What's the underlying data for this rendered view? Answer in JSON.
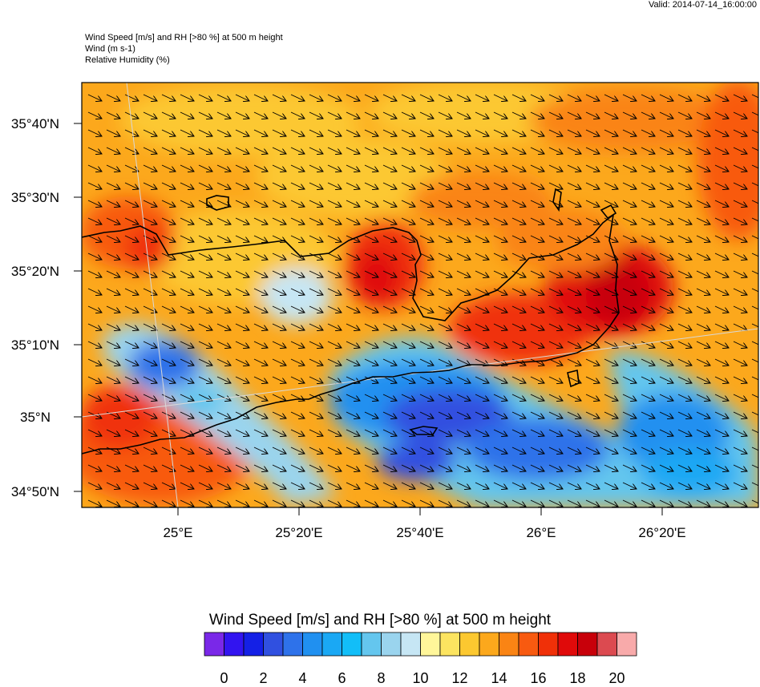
{
  "header": {
    "valid": "Valid: 2014-07-14_16:00:00",
    "line1": "Wind Speed [m/s] and RH [>80 %] at 500 m height",
    "line2": "Wind   (m s-1)",
    "line3": "Relative Humidity   (%)"
  },
  "map": {
    "lat_labels": [
      "35°40'N",
      "35°30'N",
      "35°20'N",
      "35°10'N",
      "35°N",
      "34°50'N"
    ],
    "lon_labels": [
      "25°E",
      "25°20'E",
      "25°40'E",
      "26°E",
      "26°20'E"
    ],
    "wind_direction": "north-west to south-east",
    "coastline_color": "#000000"
  },
  "colorbar": {
    "title": "Wind Speed [m/s] and RH [>80 %] at 500 m height",
    "tick_labels": [
      "0",
      "2",
      "4",
      "6",
      "8",
      "10",
      "12",
      "14",
      "16",
      "18",
      "20"
    ],
    "colors": [
      "#7a28e8",
      "#3214f0",
      "#1420e6",
      "#3050e0",
      "#2e72ea",
      "#2090f0",
      "#1aa8f4",
      "#12bef8",
      "#64c6ee",
      "#9ad4ee",
      "#c6e6f4",
      "#fff69a",
      "#fce460",
      "#fcc830",
      "#fca81c",
      "#fa8414",
      "#f85a10",
      "#f03008",
      "#e00a0a",
      "#c8000a",
      "#dc4a50",
      "#f8aaaa"
    ]
  }
}
